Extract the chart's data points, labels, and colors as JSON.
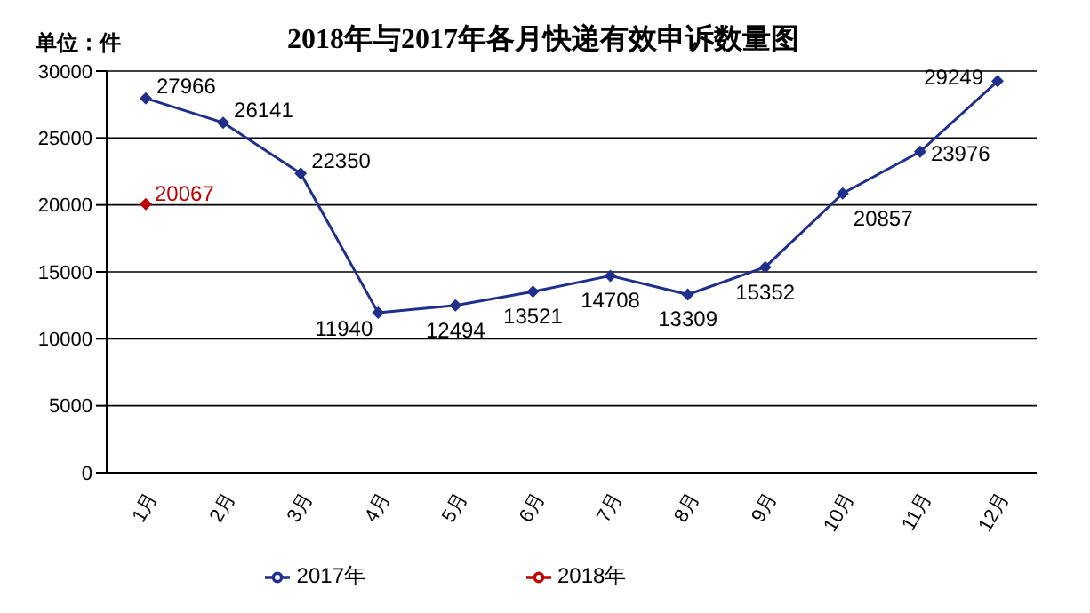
{
  "chart_data": {
    "type": "line",
    "title": "2018年与2017年各月快递有效申诉数量图",
    "ylabel": "单位：件",
    "categories": [
      "1月",
      "2月",
      "3月",
      "4月",
      "5月",
      "6月",
      "7月",
      "8月",
      "9月",
      "10月",
      "11月",
      "12月"
    ],
    "series": [
      {
        "name": "2017年",
        "color": "#1f2f8c",
        "values": [
          27966,
          26141,
          22350,
          11940,
          12494,
          13521,
          14708,
          13309,
          15352,
          20857,
          23976,
          29249
        ]
      },
      {
        "name": "2018年",
        "color": "#c00000",
        "values": [
          20067,
          null,
          null,
          null,
          null,
          null,
          null,
          null,
          null,
          null,
          null,
          null
        ]
      }
    ],
    "ylim": [
      0,
      30000
    ],
    "yticks": [
      0,
      5000,
      10000,
      15000,
      20000,
      25000,
      30000
    ],
    "grid": "y",
    "legend": "bottom",
    "marker": "diamond",
    "line_style": "solid",
    "data_labels": true
  }
}
